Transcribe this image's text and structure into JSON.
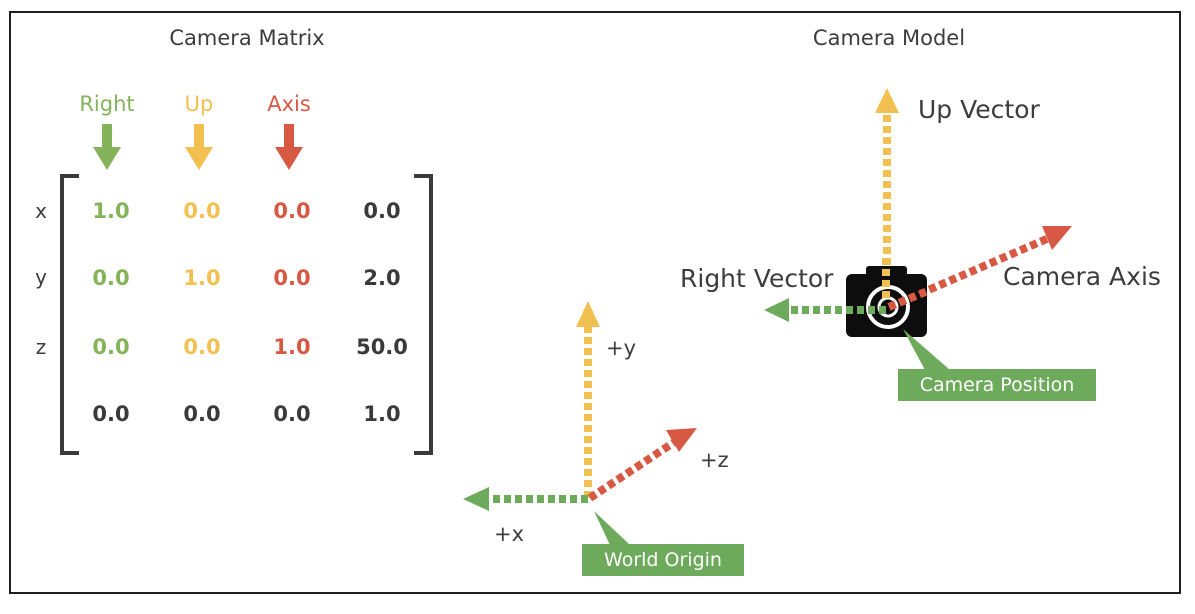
{
  "colors": {
    "right": "#85b35a",
    "up": "#f2c050",
    "axis": "#d75943",
    "dark": "#3d3d3d",
    "callout": "#6eaa5c"
  },
  "matrix": {
    "title": "Camera Matrix",
    "column_headers": [
      {
        "label": "Right",
        "color_key": "right"
      },
      {
        "label": "Up",
        "color_key": "up"
      },
      {
        "label": "Axis",
        "color_key": "axis"
      }
    ],
    "row_labels": [
      "x",
      "y",
      "z",
      ""
    ],
    "rows": [
      [
        "1.0",
        "0.0",
        "0.0",
        "0.0"
      ],
      [
        "0.0",
        "1.0",
        "0.0",
        "2.0"
      ],
      [
        "0.0",
        "0.0",
        "1.0",
        "50.0"
      ],
      [
        "0.0",
        "0.0",
        "0.0",
        "1.0"
      ]
    ]
  },
  "model": {
    "title": "Camera Model",
    "up_vector_label": "Up Vector",
    "right_vector_label": "Right Vector",
    "camera_axis_label": "Camera Axis",
    "camera_position_label": "Camera Position",
    "camera_icon": "camera-icon"
  },
  "world": {
    "plus_y": "+y",
    "plus_x": "+x",
    "plus_z": "+z",
    "origin_label": "World Origin"
  }
}
